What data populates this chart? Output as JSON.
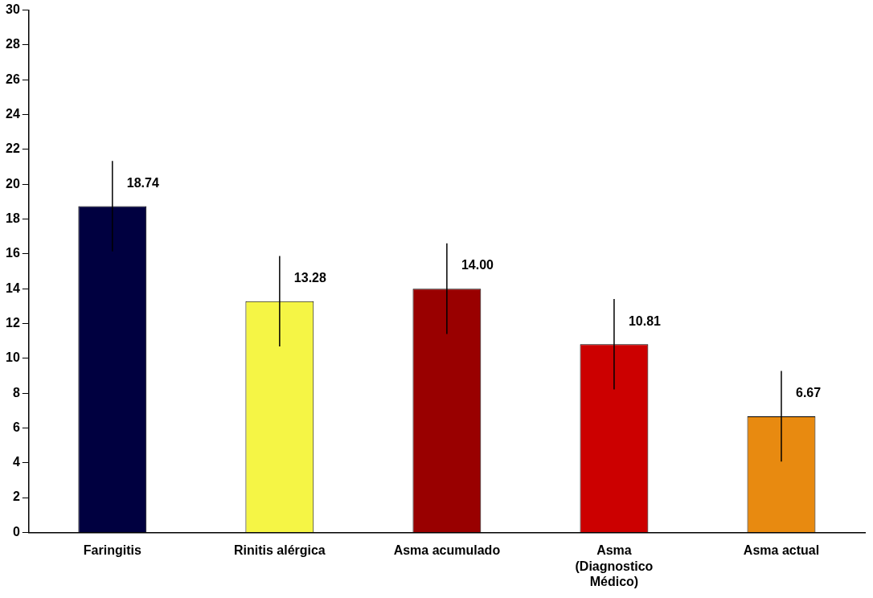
{
  "chart_data": {
    "type": "bar",
    "categories": [
      "Faringitis",
      "Rinitis alérgica",
      "Asma acumulado",
      "Asma (Diagnostico Médico)",
      "Asma actual"
    ],
    "values": [
      18.74,
      13.28,
      14.0,
      10.81,
      6.67
    ],
    "value_labels": [
      "18.74",
      "13.28",
      "14.00",
      "10.81",
      "6.67"
    ],
    "errors": [
      2.6,
      2.6,
      2.6,
      2.6,
      2.6
    ],
    "colors": [
      "#000040",
      "#f5f545",
      "#990000",
      "#cc0000",
      "#e88a10"
    ],
    "ylim": [
      0,
      30
    ],
    "yticks": [
      0,
      2,
      4,
      6,
      8,
      10,
      12,
      14,
      16,
      18,
      20,
      22,
      24,
      26,
      28,
      30
    ],
    "grid": false,
    "legend": false
  }
}
